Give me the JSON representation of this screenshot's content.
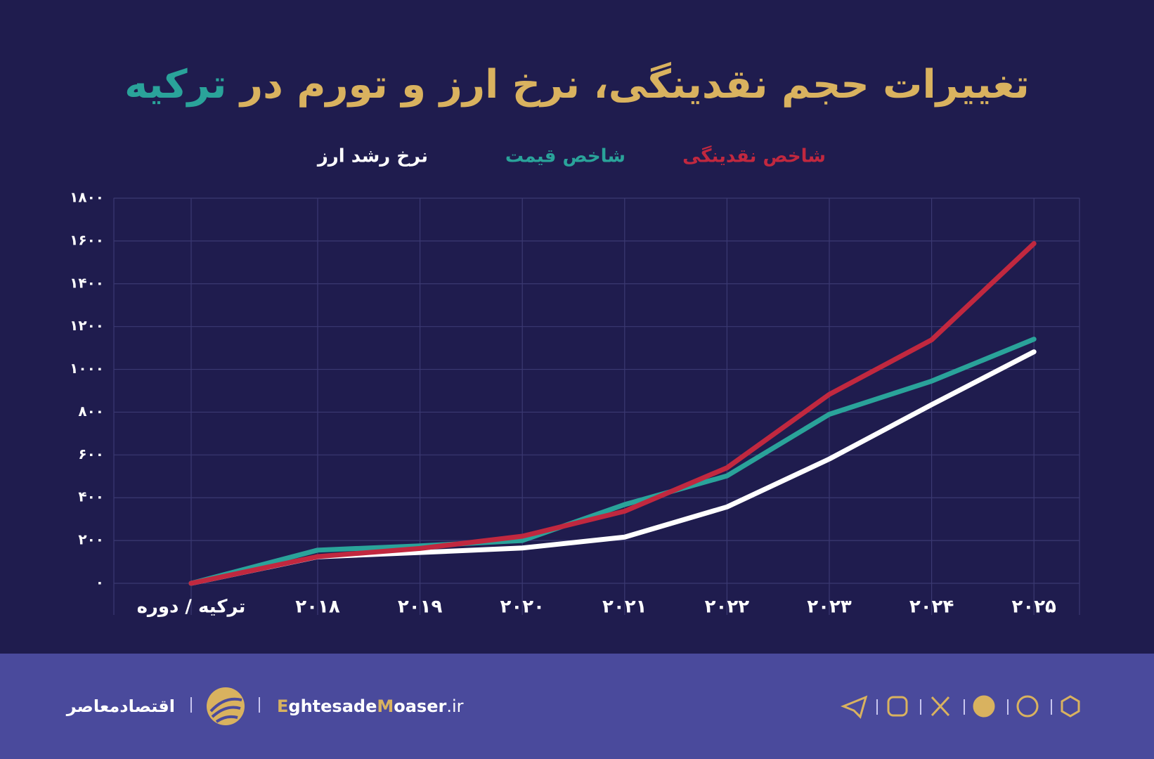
{
  "chart_data": {
    "type": "line",
    "title": "تغییرات حجم نقدینگی، نرخ ارز و تورم در",
    "title_highlight": "ترکیه",
    "categories": [
      "ترکیه / دوره",
      "۲۰۱۸",
      "۲۰۱۹",
      "۲۰۲۰",
      "۲۰۲۱",
      "۲۰۲۲",
      "۲۰۲۳",
      "۲۰۲۴",
      "۲۰۲۵"
    ],
    "series": [
      {
        "name": "شاخص نقدینگی",
        "color": "#c1283f",
        "values": [
          0,
          125,
          163,
          220,
          337,
          540,
          883,
          1138,
          1588
        ]
      },
      {
        "name": "شاخص قیمت",
        "color": "#2aa39a",
        "values": [
          0,
          155,
          175,
          200,
          368,
          502,
          790,
          945,
          1141
        ]
      },
      {
        "name": "نرخ رشد ارز",
        "color": "#ffffff",
        "values": [
          0,
          124,
          144,
          165,
          216,
          357,
          581,
          835,
          1082
        ]
      }
    ],
    "ylim": [
      0,
      1800
    ],
    "yticks": [
      {
        "value": 0,
        "label": "۰"
      },
      {
        "value": 200,
        "label": "۲۰۰"
      },
      {
        "value": 400,
        "label": "۴۰۰"
      },
      {
        "value": 600,
        "label": "۶۰۰"
      },
      {
        "value": 800,
        "label": "۸۰۰"
      },
      {
        "value": 1000,
        "label": "۱۰۰۰"
      },
      {
        "value": 1200,
        "label": "۱۲۰۰"
      },
      {
        "value": 1400,
        "label": "۱۴۰۰"
      },
      {
        "value": 1600,
        "label": "۱۶۰۰"
      },
      {
        "value": 1800,
        "label": "۱۸۰۰"
      }
    ],
    "grid": true
  },
  "footer": {
    "brand": "اقتصادمعاصر",
    "website_parts": [
      "E",
      "ghtesade",
      "M",
      "oaser",
      ".ir"
    ]
  }
}
